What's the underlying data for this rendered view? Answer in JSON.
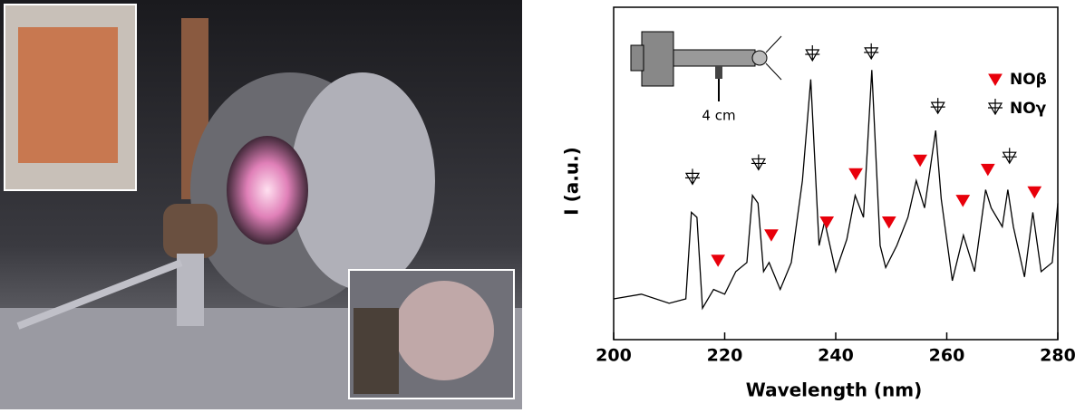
{
  "chart_data": {
    "type": "line",
    "xlabel": "Wavelength (nm)",
    "ylabel": "I (a.u.)",
    "xlim": [
      200,
      280
    ],
    "xticks": [
      200,
      220,
      240,
      260,
      280
    ],
    "ylim": [
      0,
      106
    ],
    "color": "#000000",
    "x": [
      200,
      205,
      210,
      213,
      214,
      215,
      216,
      218,
      220,
      222,
      224,
      225,
      226,
      227,
      228,
      230,
      232,
      234,
      235.5,
      237,
      238,
      240,
      242,
      243.5,
      245,
      246.5,
      248,
      249,
      251,
      253,
      254.5,
      256,
      258,
      259,
      261,
      263,
      265,
      267,
      268,
      270,
      271,
      272,
      274,
      275.5,
      277,
      279,
      280
    ],
    "values": [
      13,
      14.5,
      11.6,
      13,
      40.6,
      39,
      10,
      16,
      14.5,
      21.7,
      24.6,
      46,
      43.5,
      21.7,
      24.6,
      16,
      24.6,
      50.7,
      83,
      30,
      37.7,
      21.7,
      32,
      46,
      39,
      86,
      30,
      23,
      30,
      39,
      50.7,
      42,
      66.7,
      44.9,
      18.8,
      33.3,
      21.7,
      47.8,
      42,
      36,
      47.8,
      36,
      20,
      40.6,
      21.7,
      24.6,
      43.5
    ],
    "markers": [
      {
        "name": "NOβ",
        "color": "#e8000b",
        "x": [
          218.8,
          228.4,
          238.4,
          243.6,
          249.6,
          255.2,
          262.9,
          267.4,
          275.8
        ],
        "values": [
          25.2,
          33.3,
          37.4,
          52.8,
          37.4,
          57.1,
          44.3,
          54.2,
          47
        ]
      },
      {
        "name": "NOγ",
        "color": "#000000",
        "x": [
          214.2,
          226.1,
          235.8,
          246.4,
          258.4,
          271.3
        ],
        "values": [
          51.3,
          55.9,
          90.7,
          91.3,
          73.9,
          58
        ]
      }
    ],
    "inset_label": "4 cm"
  }
}
